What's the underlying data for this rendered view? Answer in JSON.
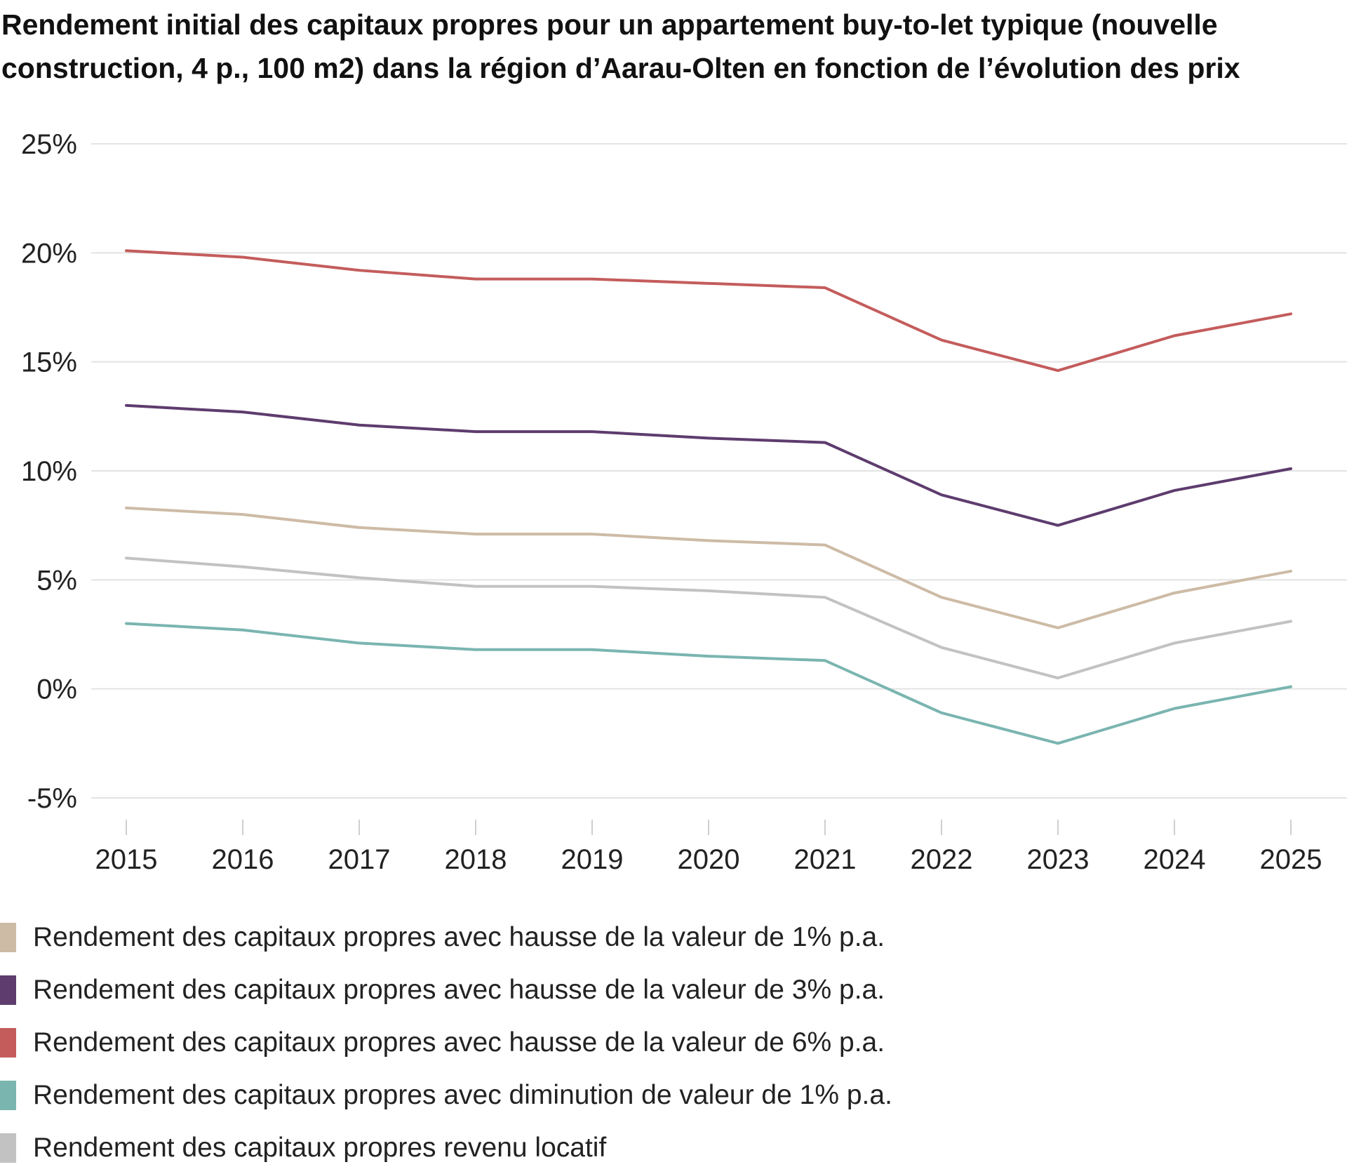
{
  "chart_data": {
    "type": "line",
    "title": "Rendement initial des capitaux propres pour un appartement buy-to-let typique (nouvelle construction, 4 p., 100 m2) dans la région d’Aarau-Olten en fonction de l’évolution des prix",
    "xlabel": "",
    "ylabel": "",
    "x": [
      "2015",
      "2016",
      "2017",
      "2018",
      "2019",
      "2020",
      "2021",
      "2022",
      "2023",
      "2024",
      "2025"
    ],
    "y_ticks": [
      -5,
      0,
      5,
      10,
      15,
      20,
      25
    ],
    "y_tick_labels": [
      "-5%",
      "0%",
      "5%",
      "10%",
      "15%",
      "20%",
      "25%"
    ],
    "ylim": [
      -5,
      25
    ],
    "grid": true,
    "legend_position": "bottom",
    "series": [
      {
        "name": "Rendement des capitaux propres avec hausse de la valeur de 1% p.a.",
        "color": "#cdbba6",
        "values": [
          8.3,
          8.0,
          7.4,
          7.1,
          7.1,
          6.8,
          6.6,
          4.2,
          2.8,
          4.4,
          5.4
        ]
      },
      {
        "name": "Rendement des capitaux propres avec hausse de la valeur de 3% p.a.",
        "color": "#5e3c6e",
        "values": [
          13.0,
          12.7,
          12.1,
          11.8,
          11.8,
          11.5,
          11.3,
          8.9,
          7.5,
          9.1,
          10.1
        ]
      },
      {
        "name": "Rendement des capitaux propres avec hausse de la valeur de 6% p.a.",
        "color": "#c45c5c",
        "values": [
          20.1,
          19.8,
          19.2,
          18.8,
          18.8,
          18.6,
          18.4,
          16.0,
          14.6,
          16.2,
          17.2
        ]
      },
      {
        "name": "Rendement des capitaux propres avec diminution de valeur de 1% p.a.",
        "color": "#7ab5b0",
        "values": [
          3.0,
          2.7,
          2.1,
          1.8,
          1.8,
          1.5,
          1.3,
          -1.1,
          -2.5,
          -0.9,
          0.1
        ]
      },
      {
        "name": "Rendement des capitaux propres revenu locatif",
        "color": "#c2c2c2",
        "values": [
          6.0,
          5.6,
          5.1,
          4.7,
          4.7,
          4.5,
          4.2,
          1.9,
          0.5,
          2.1,
          3.1
        ]
      }
    ],
    "draw_order": [
      4,
      3,
      0,
      1,
      2
    ]
  }
}
